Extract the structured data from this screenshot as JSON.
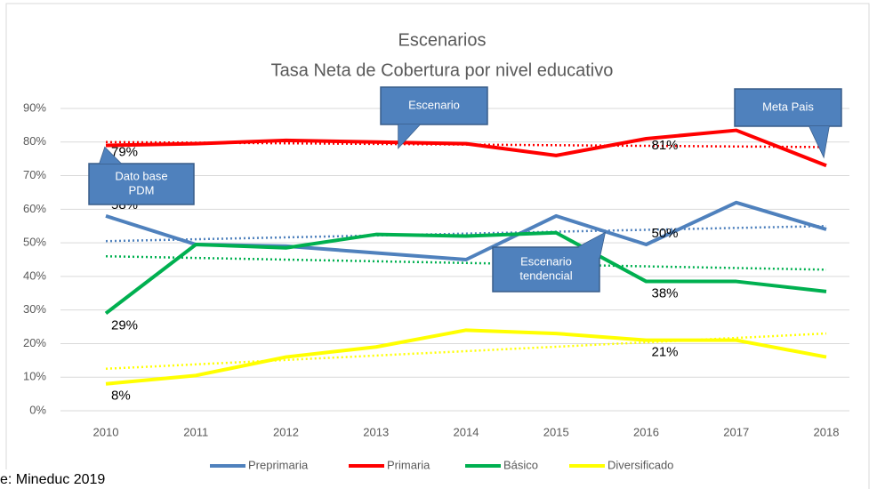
{
  "chart_data": {
    "type": "line",
    "title": "Escenarios",
    "subtitle": "Tasa Neta de Cobertura por nivel educativo",
    "source": "e: Mineduc 2019",
    "categories": [
      "2010",
      "2011",
      "2012",
      "2013",
      "2014",
      "2015",
      "2016",
      "2017",
      "2018"
    ],
    "ylim": [
      0,
      90
    ],
    "yticks": [
      {
        "value": 0,
        "label": "0%"
      },
      {
        "value": 10,
        "label": "10%"
      },
      {
        "value": 20,
        "label": "20%"
      },
      {
        "value": 30,
        "label": "30%"
      },
      {
        "value": 40,
        "label": "40%"
      },
      {
        "value": 50,
        "label": "50%"
      },
      {
        "value": 60,
        "label": "60%"
      },
      {
        "value": 70,
        "label": "70%"
      },
      {
        "value": 80,
        "label": "80%"
      },
      {
        "value": 90,
        "label": "90%"
      }
    ],
    "grid": true,
    "legend": "bottom",
    "series": [
      {
        "name": "Preprimaria",
        "color": "#4f81bd",
        "values": [
          58,
          49.5,
          49,
          47,
          45,
          58,
          49.5,
          62,
          54
        ],
        "value_labels": [
          "58%",
          null,
          null,
          null,
          null,
          null,
          "50%",
          null,
          null
        ],
        "trend": [
          50.5,
          55
        ]
      },
      {
        "name": "Primaria",
        "color": "#ff0000",
        "values": [
          79,
          79.5,
          80.5,
          80,
          79.5,
          76,
          81,
          83.5,
          73
        ],
        "value_labels": [
          "79%",
          null,
          null,
          null,
          null,
          null,
          "81%",
          null,
          null
        ],
        "trend": [
          80,
          78.5
        ]
      },
      {
        "name": "Básico",
        "color": "#00b050",
        "values": [
          29,
          49.5,
          48.5,
          52.5,
          52,
          53,
          38.5,
          38.5,
          35.5
        ],
        "value_labels": [
          "29%",
          null,
          null,
          null,
          null,
          null,
          "38%",
          null,
          null
        ],
        "trend": [
          46,
          42
        ]
      },
      {
        "name": "Diversificado",
        "color": "#ffff00",
        "values": [
          8,
          10.5,
          16,
          19,
          24,
          23,
          21,
          21,
          16
        ],
        "value_labels": [
          "8%",
          null,
          null,
          null,
          null,
          null,
          "21%",
          null,
          null
        ],
        "trend": [
          12.5,
          23
        ]
      }
    ],
    "annotations": [
      {
        "text": [
          "Dato base",
          "PDM"
        ]
      },
      {
        "text": [
          "Escenario"
        ]
      },
      {
        "text": [
          "Meta Pais"
        ]
      },
      {
        "text": [
          "Escenario",
          "tendencial"
        ]
      }
    ]
  }
}
